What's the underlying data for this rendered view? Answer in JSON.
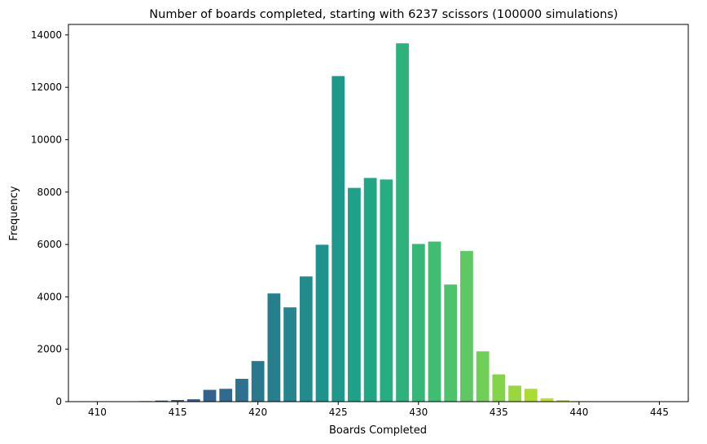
{
  "chart_data": {
    "type": "bar",
    "title": "Number of boards completed, starting with 6237 scissors (100000 simulations)",
    "xlabel": "Boards Completed",
    "ylabel": "Frequency",
    "xlim": [
      408.2,
      446.8
    ],
    "ylim": [
      0,
      14400
    ],
    "xticks": [
      410,
      415,
      420,
      425,
      430,
      435,
      440,
      445
    ],
    "yticks": [
      0,
      2000,
      4000,
      6000,
      8000,
      10000,
      12000,
      14000
    ],
    "grid": false,
    "legend": "none",
    "colormap": "viridis",
    "x": [
      410,
      411,
      412,
      413,
      414,
      415,
      416,
      417,
      418,
      419,
      420,
      421,
      422,
      423,
      424,
      425,
      426,
      427,
      428,
      429,
      430,
      431,
      432,
      433,
      434,
      435,
      436,
      437,
      438,
      439,
      440,
      441,
      442,
      443,
      444,
      445
    ],
    "values": [
      3,
      4,
      6,
      20,
      40,
      60,
      90,
      450,
      490,
      870,
      1550,
      4130,
      3600,
      4780,
      5990,
      12430,
      8160,
      8540,
      8480,
      13680,
      6020,
      6110,
      4470,
      5750,
      1920,
      1040,
      610,
      490,
      130,
      60,
      20,
      10,
      3,
      2,
      1,
      1
    ],
    "colors": [
      "#482173",
      "#472a7a",
      "#46327e",
      "#433c84",
      "#3f4788",
      "#3b528b",
      "#375c8d",
      "#33638d",
      "#306a8e",
      "#2d718e",
      "#2a788e",
      "#277f8e",
      "#25858e",
      "#228c8d",
      "#20928c",
      "#1f988b",
      "#1fa088",
      "#21a685",
      "#26ad81",
      "#2db27d",
      "#35b779",
      "#41bd72",
      "#4ec36b",
      "#5ec962",
      "#70cf57",
      "#83d34b",
      "#98d83e",
      "#aadc32",
      "#bddf26",
      "#d2e21b",
      "#e5e419",
      "#fde725",
      "#fde725",
      "#fde725",
      "#fde725",
      "#fde725"
    ]
  }
}
